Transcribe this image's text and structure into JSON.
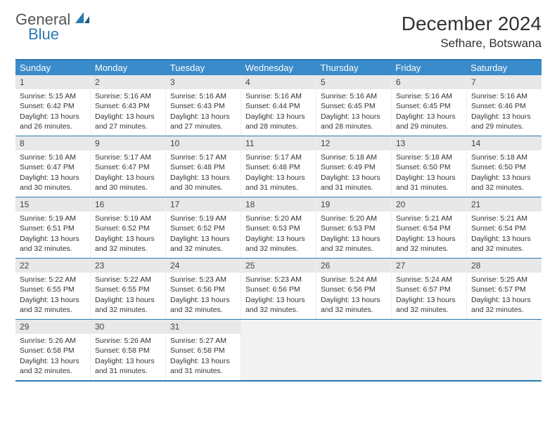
{
  "logo": {
    "word1": "General",
    "word2": "Blue"
  },
  "title": "December 2024",
  "location": "Sefhare, Botswana",
  "colors": {
    "header_bg": "#3a8bc9",
    "border": "#2a7ab0",
    "daynum_bg": "#e8e8e8",
    "empty_bg": "#f2f2f2",
    "logo_gray": "#555555",
    "logo_blue": "#2a7ab0",
    "text": "#333333"
  },
  "weekdays": [
    "Sunday",
    "Monday",
    "Tuesday",
    "Wednesday",
    "Thursday",
    "Friday",
    "Saturday"
  ],
  "weeks": [
    [
      {
        "n": "1",
        "sr": "Sunrise: 5:15 AM",
        "ss": "Sunset: 6:42 PM",
        "d1": "Daylight: 13 hours",
        "d2": "and 26 minutes."
      },
      {
        "n": "2",
        "sr": "Sunrise: 5:16 AM",
        "ss": "Sunset: 6:43 PM",
        "d1": "Daylight: 13 hours",
        "d2": "and 27 minutes."
      },
      {
        "n": "3",
        "sr": "Sunrise: 5:16 AM",
        "ss": "Sunset: 6:43 PM",
        "d1": "Daylight: 13 hours",
        "d2": "and 27 minutes."
      },
      {
        "n": "4",
        "sr": "Sunrise: 5:16 AM",
        "ss": "Sunset: 6:44 PM",
        "d1": "Daylight: 13 hours",
        "d2": "and 28 minutes."
      },
      {
        "n": "5",
        "sr": "Sunrise: 5:16 AM",
        "ss": "Sunset: 6:45 PM",
        "d1": "Daylight: 13 hours",
        "d2": "and 28 minutes."
      },
      {
        "n": "6",
        "sr": "Sunrise: 5:16 AM",
        "ss": "Sunset: 6:45 PM",
        "d1": "Daylight: 13 hours",
        "d2": "and 29 minutes."
      },
      {
        "n": "7",
        "sr": "Sunrise: 5:16 AM",
        "ss": "Sunset: 6:46 PM",
        "d1": "Daylight: 13 hours",
        "d2": "and 29 minutes."
      }
    ],
    [
      {
        "n": "8",
        "sr": "Sunrise: 5:16 AM",
        "ss": "Sunset: 6:47 PM",
        "d1": "Daylight: 13 hours",
        "d2": "and 30 minutes."
      },
      {
        "n": "9",
        "sr": "Sunrise: 5:17 AM",
        "ss": "Sunset: 6:47 PM",
        "d1": "Daylight: 13 hours",
        "d2": "and 30 minutes."
      },
      {
        "n": "10",
        "sr": "Sunrise: 5:17 AM",
        "ss": "Sunset: 6:48 PM",
        "d1": "Daylight: 13 hours",
        "d2": "and 30 minutes."
      },
      {
        "n": "11",
        "sr": "Sunrise: 5:17 AM",
        "ss": "Sunset: 6:48 PM",
        "d1": "Daylight: 13 hours",
        "d2": "and 31 minutes."
      },
      {
        "n": "12",
        "sr": "Sunrise: 5:18 AM",
        "ss": "Sunset: 6:49 PM",
        "d1": "Daylight: 13 hours",
        "d2": "and 31 minutes."
      },
      {
        "n": "13",
        "sr": "Sunrise: 5:18 AM",
        "ss": "Sunset: 6:50 PM",
        "d1": "Daylight: 13 hours",
        "d2": "and 31 minutes."
      },
      {
        "n": "14",
        "sr": "Sunrise: 5:18 AM",
        "ss": "Sunset: 6:50 PM",
        "d1": "Daylight: 13 hours",
        "d2": "and 32 minutes."
      }
    ],
    [
      {
        "n": "15",
        "sr": "Sunrise: 5:19 AM",
        "ss": "Sunset: 6:51 PM",
        "d1": "Daylight: 13 hours",
        "d2": "and 32 minutes."
      },
      {
        "n": "16",
        "sr": "Sunrise: 5:19 AM",
        "ss": "Sunset: 6:52 PM",
        "d1": "Daylight: 13 hours",
        "d2": "and 32 minutes."
      },
      {
        "n": "17",
        "sr": "Sunrise: 5:19 AM",
        "ss": "Sunset: 6:52 PM",
        "d1": "Daylight: 13 hours",
        "d2": "and 32 minutes."
      },
      {
        "n": "18",
        "sr": "Sunrise: 5:20 AM",
        "ss": "Sunset: 6:53 PM",
        "d1": "Daylight: 13 hours",
        "d2": "and 32 minutes."
      },
      {
        "n": "19",
        "sr": "Sunrise: 5:20 AM",
        "ss": "Sunset: 6:53 PM",
        "d1": "Daylight: 13 hours",
        "d2": "and 32 minutes."
      },
      {
        "n": "20",
        "sr": "Sunrise: 5:21 AM",
        "ss": "Sunset: 6:54 PM",
        "d1": "Daylight: 13 hours",
        "d2": "and 32 minutes."
      },
      {
        "n": "21",
        "sr": "Sunrise: 5:21 AM",
        "ss": "Sunset: 6:54 PM",
        "d1": "Daylight: 13 hours",
        "d2": "and 32 minutes."
      }
    ],
    [
      {
        "n": "22",
        "sr": "Sunrise: 5:22 AM",
        "ss": "Sunset: 6:55 PM",
        "d1": "Daylight: 13 hours",
        "d2": "and 32 minutes."
      },
      {
        "n": "23",
        "sr": "Sunrise: 5:22 AM",
        "ss": "Sunset: 6:55 PM",
        "d1": "Daylight: 13 hours",
        "d2": "and 32 minutes."
      },
      {
        "n": "24",
        "sr": "Sunrise: 5:23 AM",
        "ss": "Sunset: 6:56 PM",
        "d1": "Daylight: 13 hours",
        "d2": "and 32 minutes."
      },
      {
        "n": "25",
        "sr": "Sunrise: 5:23 AM",
        "ss": "Sunset: 6:56 PM",
        "d1": "Daylight: 13 hours",
        "d2": "and 32 minutes."
      },
      {
        "n": "26",
        "sr": "Sunrise: 5:24 AM",
        "ss": "Sunset: 6:56 PM",
        "d1": "Daylight: 13 hours",
        "d2": "and 32 minutes."
      },
      {
        "n": "27",
        "sr": "Sunrise: 5:24 AM",
        "ss": "Sunset: 6:57 PM",
        "d1": "Daylight: 13 hours",
        "d2": "and 32 minutes."
      },
      {
        "n": "28",
        "sr": "Sunrise: 5:25 AM",
        "ss": "Sunset: 6:57 PM",
        "d1": "Daylight: 13 hours",
        "d2": "and 32 minutes."
      }
    ],
    [
      {
        "n": "29",
        "sr": "Sunrise: 5:26 AM",
        "ss": "Sunset: 6:58 PM",
        "d1": "Daylight: 13 hours",
        "d2": "and 32 minutes."
      },
      {
        "n": "30",
        "sr": "Sunrise: 5:26 AM",
        "ss": "Sunset: 6:58 PM",
        "d1": "Daylight: 13 hours",
        "d2": "and 31 minutes."
      },
      {
        "n": "31",
        "sr": "Sunrise: 5:27 AM",
        "ss": "Sunset: 6:58 PM",
        "d1": "Daylight: 13 hours",
        "d2": "and 31 minutes."
      },
      null,
      null,
      null,
      null
    ]
  ]
}
